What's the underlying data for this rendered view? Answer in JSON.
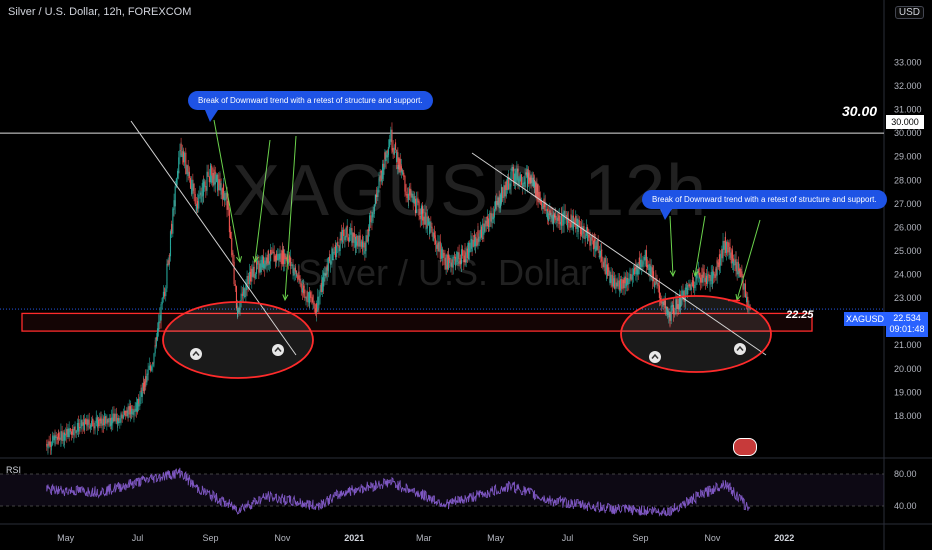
{
  "header": {
    "title": "Silver / U.S. Dollar, 12h, FOREXCOM",
    "currency": "USD"
  },
  "watermark": {
    "line1": "XAGUSD, 12h",
    "line2": "Silver / U.S. Dollar"
  },
  "annotations": {
    "callout_left": "Break of Downward trend with a retest of structure and support.",
    "callout_right": "Break of Downward trend with a retest of structure and support.",
    "level_high": "30.00",
    "level_high_box": "30.000",
    "level_low": "22.25",
    "symbol": "XAGUSD",
    "last_price": "22.534",
    "countdown": "09:01:48"
  },
  "rsi_label": "RSI",
  "colors": {
    "up": "#26a69a",
    "down": "#ef5350",
    "rsi": "#7e57c2",
    "callout": "#1e53e5",
    "support": "#ff2b2b",
    "arrows": "#6bd34c"
  },
  "chart_data": {
    "type": "candlestick",
    "title": "Silver / U.S. Dollar, 12h, FOREXCOM",
    "y_ticks": [
      "33.000",
      "32.000",
      "31.000",
      "30.000",
      "29.000",
      "28.000",
      "27.000",
      "26.000",
      "25.000",
      "24.000",
      "23.000",
      "22.000",
      "21.000",
      "20.000",
      "19.000",
      "18.000"
    ],
    "rsi_ticks": [
      "80.00",
      "40.00"
    ],
    "x_ticks": [
      "May",
      "Jul",
      "Sep",
      "Nov",
      "2021",
      "Mar",
      "May",
      "Jul",
      "Sep",
      "Nov",
      "2022"
    ],
    "ylim": [
      16.3,
      34.8
    ],
    "rsi_ylim": [
      25,
      95
    ],
    "horizontal_levels": [
      30.0,
      22.25
    ],
    "support_zone": [
      21.6,
      22.35
    ],
    "price_path": [
      {
        "t": "2020-04-15",
        "price": 16.8
      },
      {
        "t": "2020-05-15",
        "price": 17.6
      },
      {
        "t": "2020-06-15",
        "price": 17.9
      },
      {
        "t": "2020-07-01",
        "price": 18.4
      },
      {
        "t": "2020-07-15",
        "price": 20.5
      },
      {
        "t": "2020-07-25",
        "price": 23.5
      },
      {
        "t": "2020-08-07",
        "price": 29.5
      },
      {
        "t": "2020-08-20",
        "price": 27.0
      },
      {
        "t": "2020-09-01",
        "price": 28.3
      },
      {
        "t": "2020-09-15",
        "price": 27.3
      },
      {
        "t": "2020-09-24",
        "price": 22.5
      },
      {
        "t": "2020-10-05",
        "price": 24.0
      },
      {
        "t": "2020-10-20",
        "price": 24.7
      },
      {
        "t": "2020-11-05",
        "price": 24.8
      },
      {
        "t": "2020-11-20",
        "price": 23.3
      },
      {
        "t": "2020-11-30",
        "price": 22.6
      },
      {
        "t": "2020-12-10",
        "price": 24.5
      },
      {
        "t": "2020-12-25",
        "price": 25.8
      },
      {
        "t": "2021-01-10",
        "price": 25.2
      },
      {
        "t": "2021-02-01",
        "price": 29.9
      },
      {
        "t": "2021-02-15",
        "price": 27.5
      },
      {
        "t": "2021-03-01",
        "price": 26.5
      },
      {
        "t": "2021-03-20",
        "price": 24.5
      },
      {
        "t": "2021-04-05",
        "price": 24.8
      },
      {
        "t": "2021-04-25",
        "price": 26.2
      },
      {
        "t": "2021-05-15",
        "price": 28.2
      },
      {
        "t": "2021-06-01",
        "price": 28.0
      },
      {
        "t": "2021-06-15",
        "price": 26.5
      },
      {
        "t": "2021-07-05",
        "price": 26.3
      },
      {
        "t": "2021-07-25",
        "price": 25.3
      },
      {
        "t": "2021-08-10",
        "price": 23.5
      },
      {
        "t": "2021-08-25",
        "price": 23.9
      },
      {
        "t": "2021-09-05",
        "price": 24.8
      },
      {
        "t": "2021-09-25",
        "price": 22.2
      },
      {
        "t": "2021-10-05",
        "price": 22.9
      },
      {
        "t": "2021-10-20",
        "price": 24.0
      },
      {
        "t": "2021-11-01",
        "price": 23.8
      },
      {
        "t": "2021-11-12",
        "price": 25.3
      },
      {
        "t": "2021-11-25",
        "price": 24.0
      },
      {
        "t": "2021-12-03",
        "price": 22.534
      }
    ],
    "rsi_path": [
      {
        "t": "2020-04-15",
        "v": 60
      },
      {
        "t": "2020-06-01",
        "v": 58
      },
      {
        "t": "2020-07-15",
        "v": 75
      },
      {
        "t": "2020-08-07",
        "v": 82
      },
      {
        "t": "2020-08-20",
        "v": 63
      },
      {
        "t": "2020-09-24",
        "v": 36
      },
      {
        "t": "2020-10-20",
        "v": 52
      },
      {
        "t": "2020-11-30",
        "v": 40
      },
      {
        "t": "2020-12-25",
        "v": 58
      },
      {
        "t": "2021-02-01",
        "v": 70
      },
      {
        "t": "2021-03-20",
        "v": 42
      },
      {
        "t": "2021-05-15",
        "v": 65
      },
      {
        "t": "2021-06-15",
        "v": 47
      },
      {
        "t": "2021-08-10",
        "v": 36
      },
      {
        "t": "2021-09-25",
        "v": 33
      },
      {
        "t": "2021-11-12",
        "v": 69
      },
      {
        "t": "2021-12-03",
        "v": 35
      }
    ]
  }
}
